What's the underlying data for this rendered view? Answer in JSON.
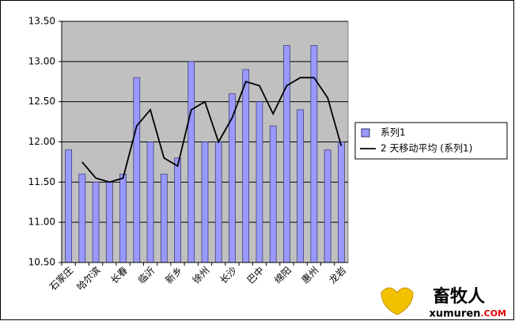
{
  "chart_data": {
    "type": "bar",
    "categories": [
      "石家庄",
      null,
      "哈尔滨",
      null,
      "长春",
      null,
      "临沂",
      null,
      "新乡",
      null,
      "徐州",
      null,
      "长沙",
      null,
      "巴中",
      null,
      "绵阳",
      null,
      "惠州",
      null,
      "龙岩"
    ],
    "series": [
      {
        "name": "系列1",
        "type": "bar",
        "color": "#9999ff",
        "values": [
          11.9,
          11.6,
          11.5,
          11.5,
          11.6,
          12.8,
          12.0,
          11.6,
          11.8,
          13.0,
          12.0,
          12.0,
          12.6,
          12.9,
          12.5,
          12.2,
          13.2,
          12.4,
          13.2,
          11.9,
          12.0
        ]
      },
      {
        "name": "2 天移动平均 (系列1)",
        "type": "line",
        "color": "#000000",
        "values": [
          null,
          11.75,
          11.55,
          11.5,
          11.55,
          12.2,
          12.4,
          11.8,
          11.7,
          12.4,
          12.5,
          12.0,
          12.3,
          12.75,
          12.7,
          12.35,
          12.7,
          12.8,
          12.8,
          12.55,
          11.95
        ]
      }
    ],
    "ylim": [
      10.5,
      13.5
    ],
    "yticks": [
      {
        "value": 10.5,
        "label": "10.50"
      },
      {
        "value": 11,
        "label": "11.00"
      },
      {
        "value": 11.5,
        "label": "11.50"
      },
      {
        "value": 12,
        "label": "12.00"
      },
      {
        "value": 12.5,
        "label": "12.50"
      },
      {
        "value": 13,
        "label": "13.00"
      },
      {
        "value": 13.5,
        "label": "13.50"
      }
    ],
    "grid": true,
    "legend": "right",
    "plot_background": "#c0c0c0"
  },
  "watermark": {
    "title": "畜牧人",
    "site": "xumuren",
    "tld": ".COM"
  }
}
